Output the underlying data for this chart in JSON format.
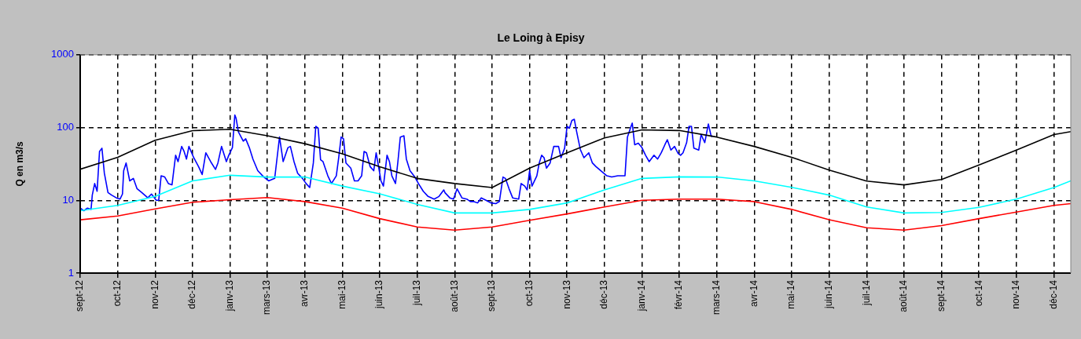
{
  "chart_data": {
    "type": "line",
    "title": "Le Loing à Episy",
    "ylabel": "Q en m3/s",
    "log": "y",
    "grid": true,
    "legend": false,
    "marker": "none",
    "line_style": "solid",
    "ylim": [
      1,
      1000
    ],
    "yticks": [
      1,
      10,
      100,
      1000
    ],
    "xlim": [
      "2012-09-29",
      "2014-12-28"
    ],
    "xticks": [
      {
        "value": "2012-09-29",
        "label": "sept-12"
      },
      {
        "value": "2012-10-30",
        "label": "oct-12"
      },
      {
        "value": "2012-11-30",
        "label": "nov-12"
      },
      {
        "value": "2012-12-31",
        "label": "déc-12"
      },
      {
        "value": "2013-01-31",
        "label": "janv-13"
      },
      {
        "value": "2013-03-03",
        "label": "mars-13"
      },
      {
        "value": "2013-04-03",
        "label": "avr-13"
      },
      {
        "value": "2013-05-04",
        "label": "mai-13"
      },
      {
        "value": "2013-06-04",
        "label": "juin-13"
      },
      {
        "value": "2013-07-05",
        "label": "juil-13"
      },
      {
        "value": "2013-08-05",
        "label": "août-13"
      },
      {
        "value": "2013-09-05",
        "label": "sept-13"
      },
      {
        "value": "2013-10-06",
        "label": "oct-13"
      },
      {
        "value": "2013-11-06",
        "label": "nov-13"
      },
      {
        "value": "2013-12-07",
        "label": "déc-13"
      },
      {
        "value": "2014-01-07",
        "label": "janv-14"
      },
      {
        "value": "2014-02-07",
        "label": "févr-14"
      },
      {
        "value": "2014-03-10",
        "label": "mars-14"
      },
      {
        "value": "2014-04-10",
        "label": "avr-14"
      },
      {
        "value": "2014-05-11",
        "label": "mai-14"
      },
      {
        "value": "2014-06-11",
        "label": "juin-14"
      },
      {
        "value": "2014-07-12",
        "label": "juil-14"
      },
      {
        "value": "2014-08-12",
        "label": "août-14"
      },
      {
        "value": "2014-09-12",
        "label": "sept-14"
      },
      {
        "value": "2014-10-13",
        "label": "oct-14"
      },
      {
        "value": "2014-11-13",
        "label": "nov-14"
      },
      {
        "value": "2014-12-14",
        "label": "déc-14"
      }
    ],
    "x": [
      "2012-09-29",
      "2012-10-30",
      "2012-11-30",
      "2012-12-31",
      "2013-01-31",
      "2013-03-03",
      "2013-04-03",
      "2013-05-04",
      "2013-06-04",
      "2013-07-05",
      "2013-08-05",
      "2013-09-05",
      "2013-10-06",
      "2013-11-06",
      "2013-12-07",
      "2014-01-07",
      "2014-02-07",
      "2014-03-10",
      "2014-04-10",
      "2014-05-11",
      "2014-06-11",
      "2014-07-12",
      "2014-08-12",
      "2014-09-12",
      "2014-10-13",
      "2014-11-13",
      "2014-12-14",
      "2014-12-28"
    ],
    "series": [
      {
        "color": "#000000",
        "values": [
          26.7,
          39,
          67,
          90.6,
          94.6,
          77,
          60,
          43.5,
          28.9,
          20,
          17,
          15,
          27.7,
          45,
          72,
          93,
          91,
          74,
          55,
          39,
          26,
          18.4,
          16.3,
          19.3,
          30.6,
          49,
          80,
          88
        ]
      },
      {
        "color": "#00ffff",
        "values": [
          7.2,
          8.5,
          11.3,
          18.5,
          22.1,
          20.9,
          20.9,
          15.7,
          12.3,
          8.8,
          6.7,
          6.7,
          7.5,
          9.2,
          13.9,
          20,
          21,
          20.9,
          18.5,
          15.1,
          11.8,
          8.1,
          6.7,
          6.8,
          8,
          10.4,
          15,
          18.5
        ]
      },
      {
        "color": "#ff0000",
        "values": [
          5.4,
          6.1,
          7.6,
          9.4,
          10.2,
          10.9,
          9.6,
          7.8,
          5.6,
          4.3,
          3.9,
          4.3,
          5.3,
          6.5,
          8.1,
          10,
          10.4,
          10.4,
          9.6,
          7.5,
          5.4,
          4.2,
          3.9,
          4.5,
          5.6,
          6.9,
          8.5,
          9
        ]
      },
      {
        "color": "#0000ff",
        "x": [
          "2012-09-29",
          "2012-10-02",
          "2012-10-05",
          "2012-10-08",
          "2012-10-09",
          "2012-10-11",
          "2012-10-13",
          "2012-10-15",
          "2012-10-17",
          "2012-10-19",
          "2012-10-22",
          "2012-10-25",
          "2012-10-29",
          "2012-11-01",
          "2012-11-03",
          "2012-11-04",
          "2012-11-06",
          "2012-11-09",
          "2012-11-12",
          "2012-11-15",
          "2012-11-19",
          "2012-11-24",
          "2012-11-27",
          "2012-12-01",
          "2012-12-03",
          "2012-12-05",
          "2012-12-08",
          "2012-12-11",
          "2012-12-14",
          "2012-12-17",
          "2012-12-19",
          "2012-12-22",
          "2012-12-24",
          "2012-12-26",
          "2012-12-28",
          "2013-01-01",
          "2013-01-05",
          "2013-01-08",
          "2013-01-11",
          "2013-01-15",
          "2013-01-19",
          "2013-01-21",
          "2013-01-24",
          "2013-01-28",
          "2013-01-30",
          "2013-02-02",
          "2013-02-04",
          "2013-02-05",
          "2013-02-07",
          "2013-02-11",
          "2013-02-13",
          "2013-02-16",
          "2013-02-19",
          "2013-02-23",
          "2013-02-28",
          "2013-03-04",
          "2013-03-09",
          "2013-03-11",
          "2013-03-13",
          "2013-03-16",
          "2013-03-20",
          "2013-03-22",
          "2013-03-25",
          "2013-03-28",
          "2013-04-01",
          "2013-04-04",
          "2013-04-07",
          "2013-04-10",
          "2013-04-12",
          "2013-04-14",
          "2013-04-16",
          "2013-04-18",
          "2013-04-22",
          "2013-04-25",
          "2013-04-29",
          "2013-05-01",
          "2013-05-03",
          "2013-05-05",
          "2013-05-07",
          "2013-05-11",
          "2013-05-14",
          "2013-05-17",
          "2013-05-20",
          "2013-05-22",
          "2013-05-24",
          "2013-05-27",
          "2013-05-30",
          "2013-06-01",
          "2013-06-03",
          "2013-06-05",
          "2013-06-07",
          "2013-06-10",
          "2013-06-12",
          "2013-06-14",
          "2013-06-17",
          "2013-06-19",
          "2013-06-21",
          "2013-06-24",
          "2013-06-26",
          "2013-06-29",
          "2013-07-03",
          "2013-07-06",
          "2013-07-10",
          "2013-07-14",
          "2013-07-19",
          "2013-07-23",
          "2013-07-27",
          "2013-07-28",
          "2013-08-01",
          "2013-08-04",
          "2013-08-07",
          "2013-08-11",
          "2013-08-15",
          "2013-08-18",
          "2013-08-21",
          "2013-08-24",
          "2013-08-27",
          "2013-08-31",
          "2013-09-04",
          "2013-09-08",
          "2013-09-11",
          "2013-09-14",
          "2013-09-16",
          "2013-09-19",
          "2013-09-22",
          "2013-09-27",
          "2013-09-29",
          "2013-10-02",
          "2013-10-04",
          "2013-10-06",
          "2013-10-08",
          "2013-10-12",
          "2013-10-14",
          "2013-10-16",
          "2013-10-18",
          "2013-10-20",
          "2013-10-23",
          "2013-10-26",
          "2013-10-30",
          "2013-11-01",
          "2013-11-04",
          "2013-11-06",
          "2013-11-08",
          "2013-11-10",
          "2013-11-12",
          "2013-11-14",
          "2013-11-17",
          "2013-11-20",
          "2013-11-24",
          "2013-11-27",
          "2013-11-30",
          "2013-12-04",
          "2013-12-09",
          "2013-12-13",
          "2013-12-18",
          "2013-12-24",
          "2013-12-26",
          "2013-12-29",
          "2013-12-30",
          "2014-01-01",
          "2014-01-04",
          "2014-01-07",
          "2014-01-10",
          "2014-01-13",
          "2014-01-17",
          "2014-01-20",
          "2014-01-23",
          "2014-01-26",
          "2014-01-28",
          "2014-01-31",
          "2014-02-03",
          "2014-02-06",
          "2014-02-08",
          "2014-02-10",
          "2014-02-13",
          "2014-02-15",
          "2014-02-17",
          "2014-02-19",
          "2014-02-23",
          "2014-02-25",
          "2014-02-28",
          "2014-03-03",
          "2014-03-05",
          "2014-03-06"
        ],
        "values": [
          7.8,
          7.2,
          7.8,
          7.5,
          11.8,
          17,
          13.3,
          47,
          52,
          23.6,
          12.8,
          11.8,
          10.8,
          10.4,
          12.2,
          25.5,
          32.6,
          18.5,
          20,
          14.5,
          12.8,
          10.8,
          12.2,
          10,
          10,
          21.7,
          20.9,
          17,
          16.3,
          41.6,
          34,
          55,
          47,
          36.9,
          55,
          38.5,
          29,
          22.6,
          45,
          34,
          26.6,
          32.6,
          55,
          34,
          41.6,
          53,
          149,
          135,
          87,
          65,
          70,
          53,
          36.9,
          25.5,
          20.9,
          18.5,
          20,
          38.5,
          74,
          34,
          53,
          55,
          34,
          23.6,
          20,
          17,
          15,
          32.6,
          104,
          98,
          36,
          34,
          21.7,
          17,
          21.7,
          38.5,
          74,
          70,
          32.6,
          27.7,
          18.5,
          18.5,
          21.7,
          47,
          45,
          29,
          25.5,
          45,
          29,
          18.5,
          15.7,
          41.6,
          34,
          21.7,
          17,
          34,
          74,
          77,
          36.9,
          25.5,
          20.9,
          17,
          13.3,
          11.3,
          10.4,
          11.3,
          13.9,
          12.7,
          10.8,
          10.4,
          14.4,
          10.8,
          10.4,
          9.6,
          9.6,
          9.2,
          10.8,
          10,
          9.2,
          9,
          9.6,
          20.9,
          20,
          14.4,
          10.8,
          10.4,
          17,
          15.7,
          13.9,
          25.5,
          15.7,
          21.7,
          32.6,
          41.6,
          38.5,
          27.7,
          32.6,
          55,
          55,
          38.5,
          52,
          104,
          98,
          125,
          130,
          87,
          50,
          38.5,
          45,
          32.6,
          29,
          25.5,
          21.7,
          20.9,
          21.7,
          21.7,
          74,
          104,
          115,
          58,
          61,
          53,
          41.6,
          34,
          41.6,
          36.9,
          45,
          58,
          68,
          49,
          55,
          44,
          41.6,
          45,
          62,
          104,
          104,
          52,
          49,
          80,
          62,
          112,
          80,
          74
        ]
      }
    ]
  }
}
